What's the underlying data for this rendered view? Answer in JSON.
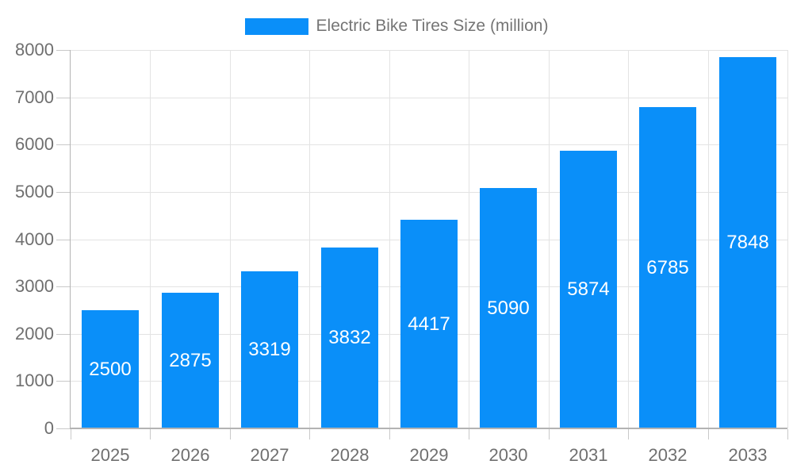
{
  "chart_data": {
    "type": "bar",
    "title": "Electric Bike Tires Size (million)",
    "legend": {
      "position": "top",
      "entries": [
        "Electric Bike Tires Size (million)"
      ]
    },
    "categories": [
      "2025",
      "2026",
      "2027",
      "2028",
      "2029",
      "2030",
      "2031",
      "2032",
      "2033"
    ],
    "values": [
      2500,
      2875,
      3319,
      3832,
      4417,
      5090,
      5874,
      6785,
      7848
    ],
    "xlabel": "",
    "ylabel": "",
    "ylim": [
      0,
      8000
    ],
    "ytick_step": 1000,
    "ytick_labels": [
      "0",
      "1000",
      "2000",
      "3000",
      "4000",
      "5000",
      "6000",
      "7000",
      "8000"
    ],
    "grid": true,
    "colors": {
      "bar": "#0A8FF9",
      "bar_value_text": "#FFFFFF",
      "axis_text": "#6F6F6F",
      "legend_text": "#757575",
      "gridline": "#E3E3E3",
      "axis_line": "#B3B3B3",
      "tick": "#C9C9C9",
      "background": "#FFFFFF"
    }
  }
}
